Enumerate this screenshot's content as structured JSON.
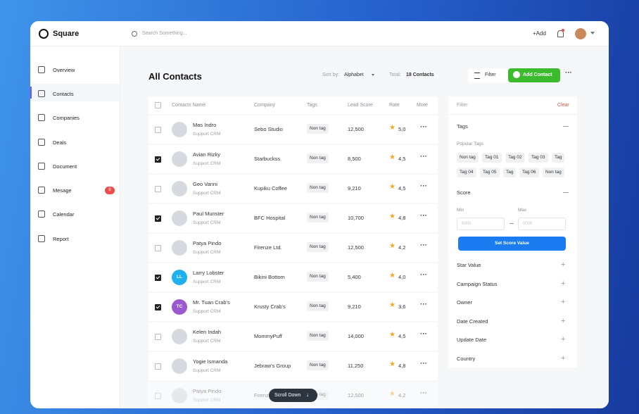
{
  "topbar": {
    "logo": "Square",
    "search_placeholder": "Search Something...",
    "add": "+Add"
  },
  "sidebar": {
    "items": [
      "Overview",
      "Contacts",
      "Companies",
      "Deals",
      "Document",
      "Mesage",
      "Calendar",
      "Report"
    ],
    "badge": "8"
  },
  "header": {
    "title": "All Contacts",
    "sort_label": "Sort by:",
    "sort_value": "Alphabet",
    "total_label": "Total:",
    "total_value": "18 Contacts",
    "filter_button": "Filter",
    "add_button": "Add Contact"
  },
  "table": {
    "columns": [
      "Contacts Name",
      "Company",
      "Tags",
      "Lead Score",
      "Rate",
      "More"
    ],
    "rows": [
      {
        "name": "Mas Indro",
        "role": "Support CRM",
        "company": "Sebo Studio",
        "tag": "Non tag",
        "score": "12,500",
        "rate": "5,0",
        "checked": false
      },
      {
        "name": "Avian Rizky",
        "role": "Support CRM",
        "company": "Starbuckss",
        "tag": "Non tag",
        "score": "8,500",
        "rate": "4,5",
        "checked": true
      },
      {
        "name": "Geo Vanni",
        "role": "Support CRM",
        "company": "Kupiku Coffee",
        "tag": "Non tag",
        "score": "9,210",
        "rate": "4,5",
        "checked": false
      },
      {
        "name": "Paul Munster",
        "role": "Support CRM",
        "company": "BFC Hospital",
        "tag": "Non tag",
        "score": "10,700",
        "rate": "4,8",
        "checked": true
      },
      {
        "name": "Patya Pindo",
        "role": "Support CRM",
        "company": "Firenze Ltd.",
        "tag": "Non tag",
        "score": "12,500",
        "rate": "4,2",
        "checked": false
      },
      {
        "name": "Larry Lobster",
        "role": "Support CRM",
        "company": "Bikini Bottom",
        "tag": "Non tag",
        "score": "5,400",
        "rate": "4,0",
        "checked": true,
        "initials": "LL",
        "color": "#1fb0ef"
      },
      {
        "name": "Mr. Tuan Crab's",
        "role": "Support CRM",
        "company": "Krusty Crab's",
        "tag": "Non tag",
        "score": "9,210",
        "rate": "3,6",
        "checked": true,
        "initials": "TC",
        "color": "#9b59d0"
      },
      {
        "name": "Kelen Indah",
        "role": "Support CRM",
        "company": "MommyPuff",
        "tag": "Non tag",
        "score": "14,000",
        "rate": "4,5",
        "checked": false
      },
      {
        "name": "Yogie Ismanda",
        "role": "Support CRM",
        "company": "Jebraw's Group",
        "tag": "Non tag",
        "score": "11,250",
        "rate": "4,8",
        "checked": false
      },
      {
        "name": "Patya Pindo",
        "role": "Support CRM",
        "company": "Firenze Ltd.",
        "tag": "Non tag",
        "score": "12,500",
        "rate": "4,2",
        "checked": false
      }
    ],
    "scroll_button": "Scroll Down"
  },
  "filter": {
    "title": "Filter",
    "clear": "Clear",
    "tags_title": "Tags",
    "popular_tags": "Popular Tags",
    "tag_rows": [
      [
        "Non tag",
        "Tag 01",
        "Tag 02",
        "Tag 03",
        "Tag"
      ],
      [
        "Tag 04",
        "Tag 05",
        "Tag",
        "Tag 06",
        "Non tag"
      ]
    ],
    "score_title": "Score",
    "min": "Min",
    "max": "Max",
    "input_placeholder": "0000",
    "set_button": "Set Score Value",
    "sections": [
      "Star Value",
      "Campaign Status",
      "Owner",
      "Date Created",
      "Update Date",
      "Country"
    ]
  }
}
